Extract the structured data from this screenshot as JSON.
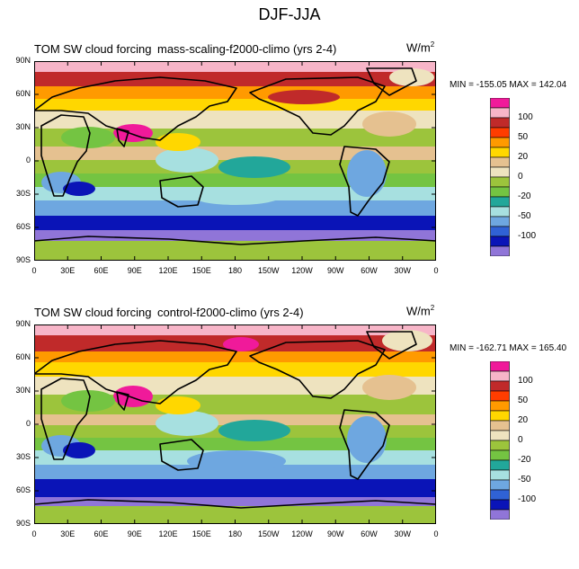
{
  "figure_title": "DJF-JJA",
  "panels": [
    {
      "title_left": "TOM SW cloud forcing",
      "title_center": "mass-scaling-f2000-climo (yrs 2-4)",
      "units_base": "W/m",
      "units_exp": "2",
      "minmax": "MIN = -155.05 MAX = 142.04"
    },
    {
      "title_left": "TOM SW cloud forcing",
      "title_center": "control-f2000-climo (yrs 2-4)",
      "units_base": "W/m",
      "units_exp": "2",
      "minmax": "MIN = -162.71 MAX = 165.40"
    }
  ],
  "lat_labels": [
    "90N",
    "60N",
    "30N",
    "0",
    "30S",
    "60S",
    "90S"
  ],
  "lon_labels": [
    "0",
    "30E",
    "60E",
    "90E",
    "120E",
    "150E",
    "180",
    "150W",
    "120W",
    "90W",
    "60W",
    "30W",
    "0"
  ],
  "colorbar_labels": [
    "100",
    "50",
    "20",
    "0",
    "-20",
    "-50",
    "-100"
  ],
  "colorbar_colors": [
    "#f01a9a",
    "#f7b5c8",
    "#c02a2a",
    "#ff3d00",
    "#ff9a00",
    "#ffd700",
    "#e5c190",
    "#eee3bf",
    "#9cc43c",
    "#74c442",
    "#22a79a",
    "#a7e0e0",
    "#6ea7e0",
    "#3062d5",
    "#0a14b7",
    "#9075d8"
  ],
  "map_colors": {
    "ocean_high_pos": "#c02a2a",
    "pos_mid": "#ff9a00",
    "pos_low": "#ffd700",
    "tan": "#e5c190",
    "cream": "#eee3bf",
    "green": "#9cc43c",
    "light_green": "#74c442",
    "teal": "#22a79a",
    "light_blue": "#a7e0e0",
    "blue": "#6ea7e0",
    "dark_blue": "#0a14b7",
    "purple": "#9075d8",
    "pink": "#f7b5c8",
    "magenta": "#f01a9a"
  }
}
